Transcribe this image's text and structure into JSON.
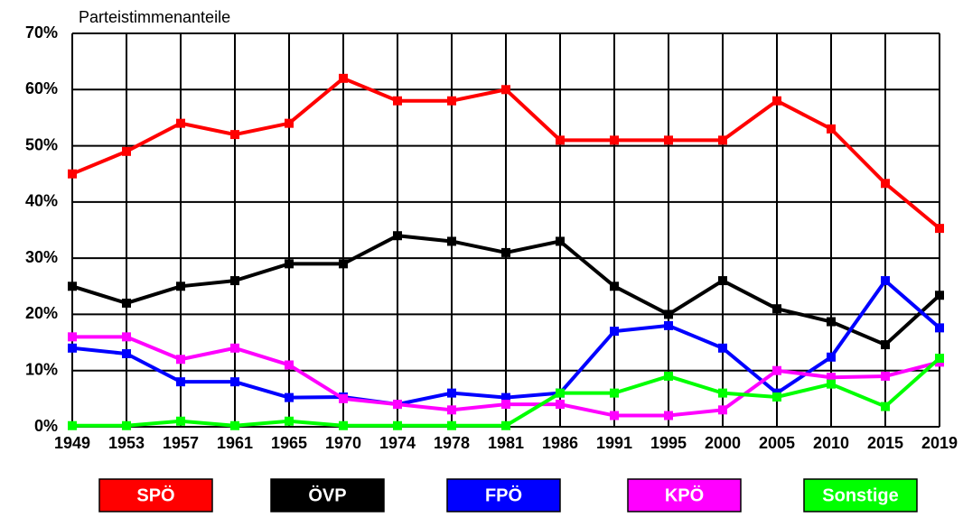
{
  "chart_data": {
    "type": "line",
    "y_axis_label": "Parteistimmenanteile",
    "categories": [
      "1949",
      "1953",
      "1957",
      "1961",
      "1965",
      "1970",
      "1974",
      "1978",
      "1981",
      "1986",
      "1991",
      "1995",
      "2000",
      "2005",
      "2010",
      "2015",
      "2019"
    ],
    "series": [
      {
        "name": "SPÖ",
        "color": "#ff0000",
        "values": [
          45,
          49,
          54,
          52,
          54,
          62,
          58,
          58,
          60,
          51,
          51,
          51,
          51,
          58,
          53,
          43.3,
          35.3
        ]
      },
      {
        "name": "ÖVP",
        "color": "#000000",
        "values": [
          25,
          22,
          25,
          26,
          29,
          29,
          34,
          33,
          31,
          33,
          25,
          20,
          26,
          21,
          18.7,
          14.6,
          23.4
        ]
      },
      {
        "name": "FPÖ",
        "color": "#0000ff",
        "values": [
          14,
          13,
          8,
          8,
          5.2,
          5.3,
          4,
          6,
          5.2,
          6,
          17,
          18,
          14,
          6,
          12.4,
          26,
          17.6
        ]
      },
      {
        "name": "KPÖ",
        "color": "#ff00ff",
        "values": [
          16,
          16,
          12,
          14,
          11,
          5,
          4,
          3,
          4,
          4,
          2,
          2,
          3,
          10,
          8.8,
          9,
          11.5
        ]
      },
      {
        "name": "Sonstige",
        "color": "#00ff00",
        "values": [
          0.2,
          0.2,
          1,
          0.2,
          1,
          0.2,
          0.2,
          0.2,
          0.2,
          6,
          6,
          9,
          6,
          5.3,
          7.6,
          3.6,
          12.2
        ]
      }
    ],
    "ylim": [
      0,
      70
    ],
    "yticks": [
      {
        "value": 0,
        "label": "0%"
      },
      {
        "value": 10,
        "label": "10%"
      },
      {
        "value": 20,
        "label": "20%"
      },
      {
        "value": 30,
        "label": "30%"
      },
      {
        "value": 40,
        "label": "40%"
      },
      {
        "value": 50,
        "label": "50%"
      },
      {
        "value": 60,
        "label": "60%"
      },
      {
        "value": 70,
        "label": "70%"
      }
    ],
    "grid": true,
    "legend": "bottom"
  }
}
